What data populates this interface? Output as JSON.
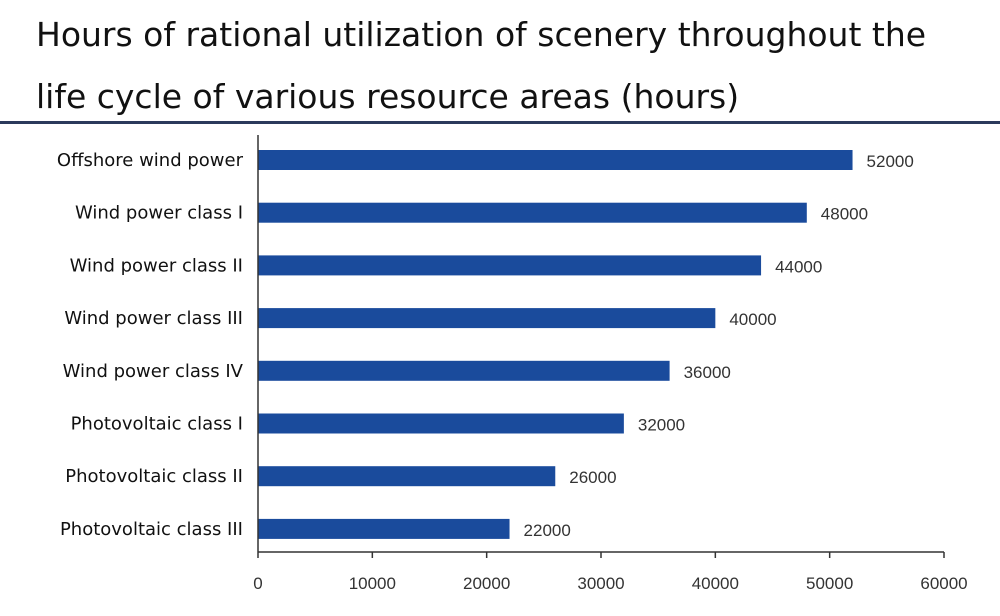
{
  "chart_data": {
    "type": "bar",
    "orientation": "horizontal",
    "title": "Hours of rational utilization of scenery throughout the life cycle of various resource areas (hours)",
    "categories": [
      "Offshore wind power",
      "Wind power class I",
      "Wind power class II",
      "Wind power class III",
      "Wind power class IV",
      "Photovoltaic class I",
      "Photovoltaic class II",
      "Photovoltaic class III"
    ],
    "values": [
      52000,
      48000,
      44000,
      40000,
      36000,
      32000,
      26000,
      22000
    ],
    "xlim": [
      0,
      60000
    ],
    "xticks": [
      0,
      10000,
      20000,
      30000,
      40000,
      50000,
      60000
    ],
    "xlabel": "",
    "ylabel": "",
    "grid": false,
    "data_labels": true,
    "bar_color": "#1a4b9c"
  }
}
